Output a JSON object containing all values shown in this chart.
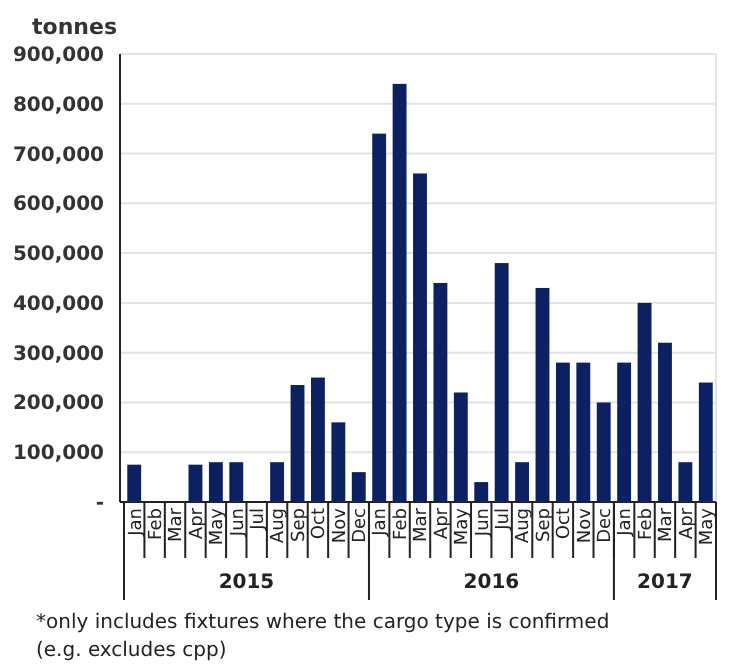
{
  "chart_data": {
    "type": "bar",
    "ylabel": "tonnes",
    "categories": [
      "Jan",
      "Feb",
      "Mar",
      "Apr",
      "May",
      "Jun",
      "Jul",
      "Aug",
      "Sep",
      "Oct",
      "Nov",
      "Dec",
      "Jan",
      "Feb",
      "Mar",
      "Apr",
      "May",
      "Jun",
      "Jul",
      "Aug",
      "Sep",
      "Oct",
      "Nov",
      "Dec",
      "Jan",
      "Feb",
      "Mar",
      "Apr",
      "May"
    ],
    "values": [
      75000,
      null,
      null,
      75000,
      80000,
      80000,
      null,
      80000,
      235000,
      250000,
      160000,
      60000,
      740000,
      840000,
      660000,
      440000,
      220000,
      40000,
      480000,
      80000,
      430000,
      280000,
      280000,
      200000,
      280000,
      400000,
      320000,
      80000,
      240000
    ],
    "color": "#0c2161",
    "ylim": [
      0,
      900000
    ],
    "yticks": [
      {
        "value": 0,
        "label": "-"
      },
      {
        "value": 100000,
        "label": "100,000"
      },
      {
        "value": 200000,
        "label": "200,000"
      },
      {
        "value": 300000,
        "label": "300,000"
      },
      {
        "value": 400000,
        "label": "400,000"
      },
      {
        "value": 500000,
        "label": "500,000"
      },
      {
        "value": 600000,
        "label": "600,000"
      },
      {
        "value": 700000,
        "label": "700,000"
      },
      {
        "value": 800000,
        "label": "800,000"
      },
      {
        "value": 900000,
        "label": "900,000"
      }
    ],
    "grid": "y",
    "annotations": [
      "2015",
      "2016",
      "2017",
      "*only includes fixtures where the cargo type is confirmed",
      "(e.g. excludes cpp)"
    ]
  }
}
